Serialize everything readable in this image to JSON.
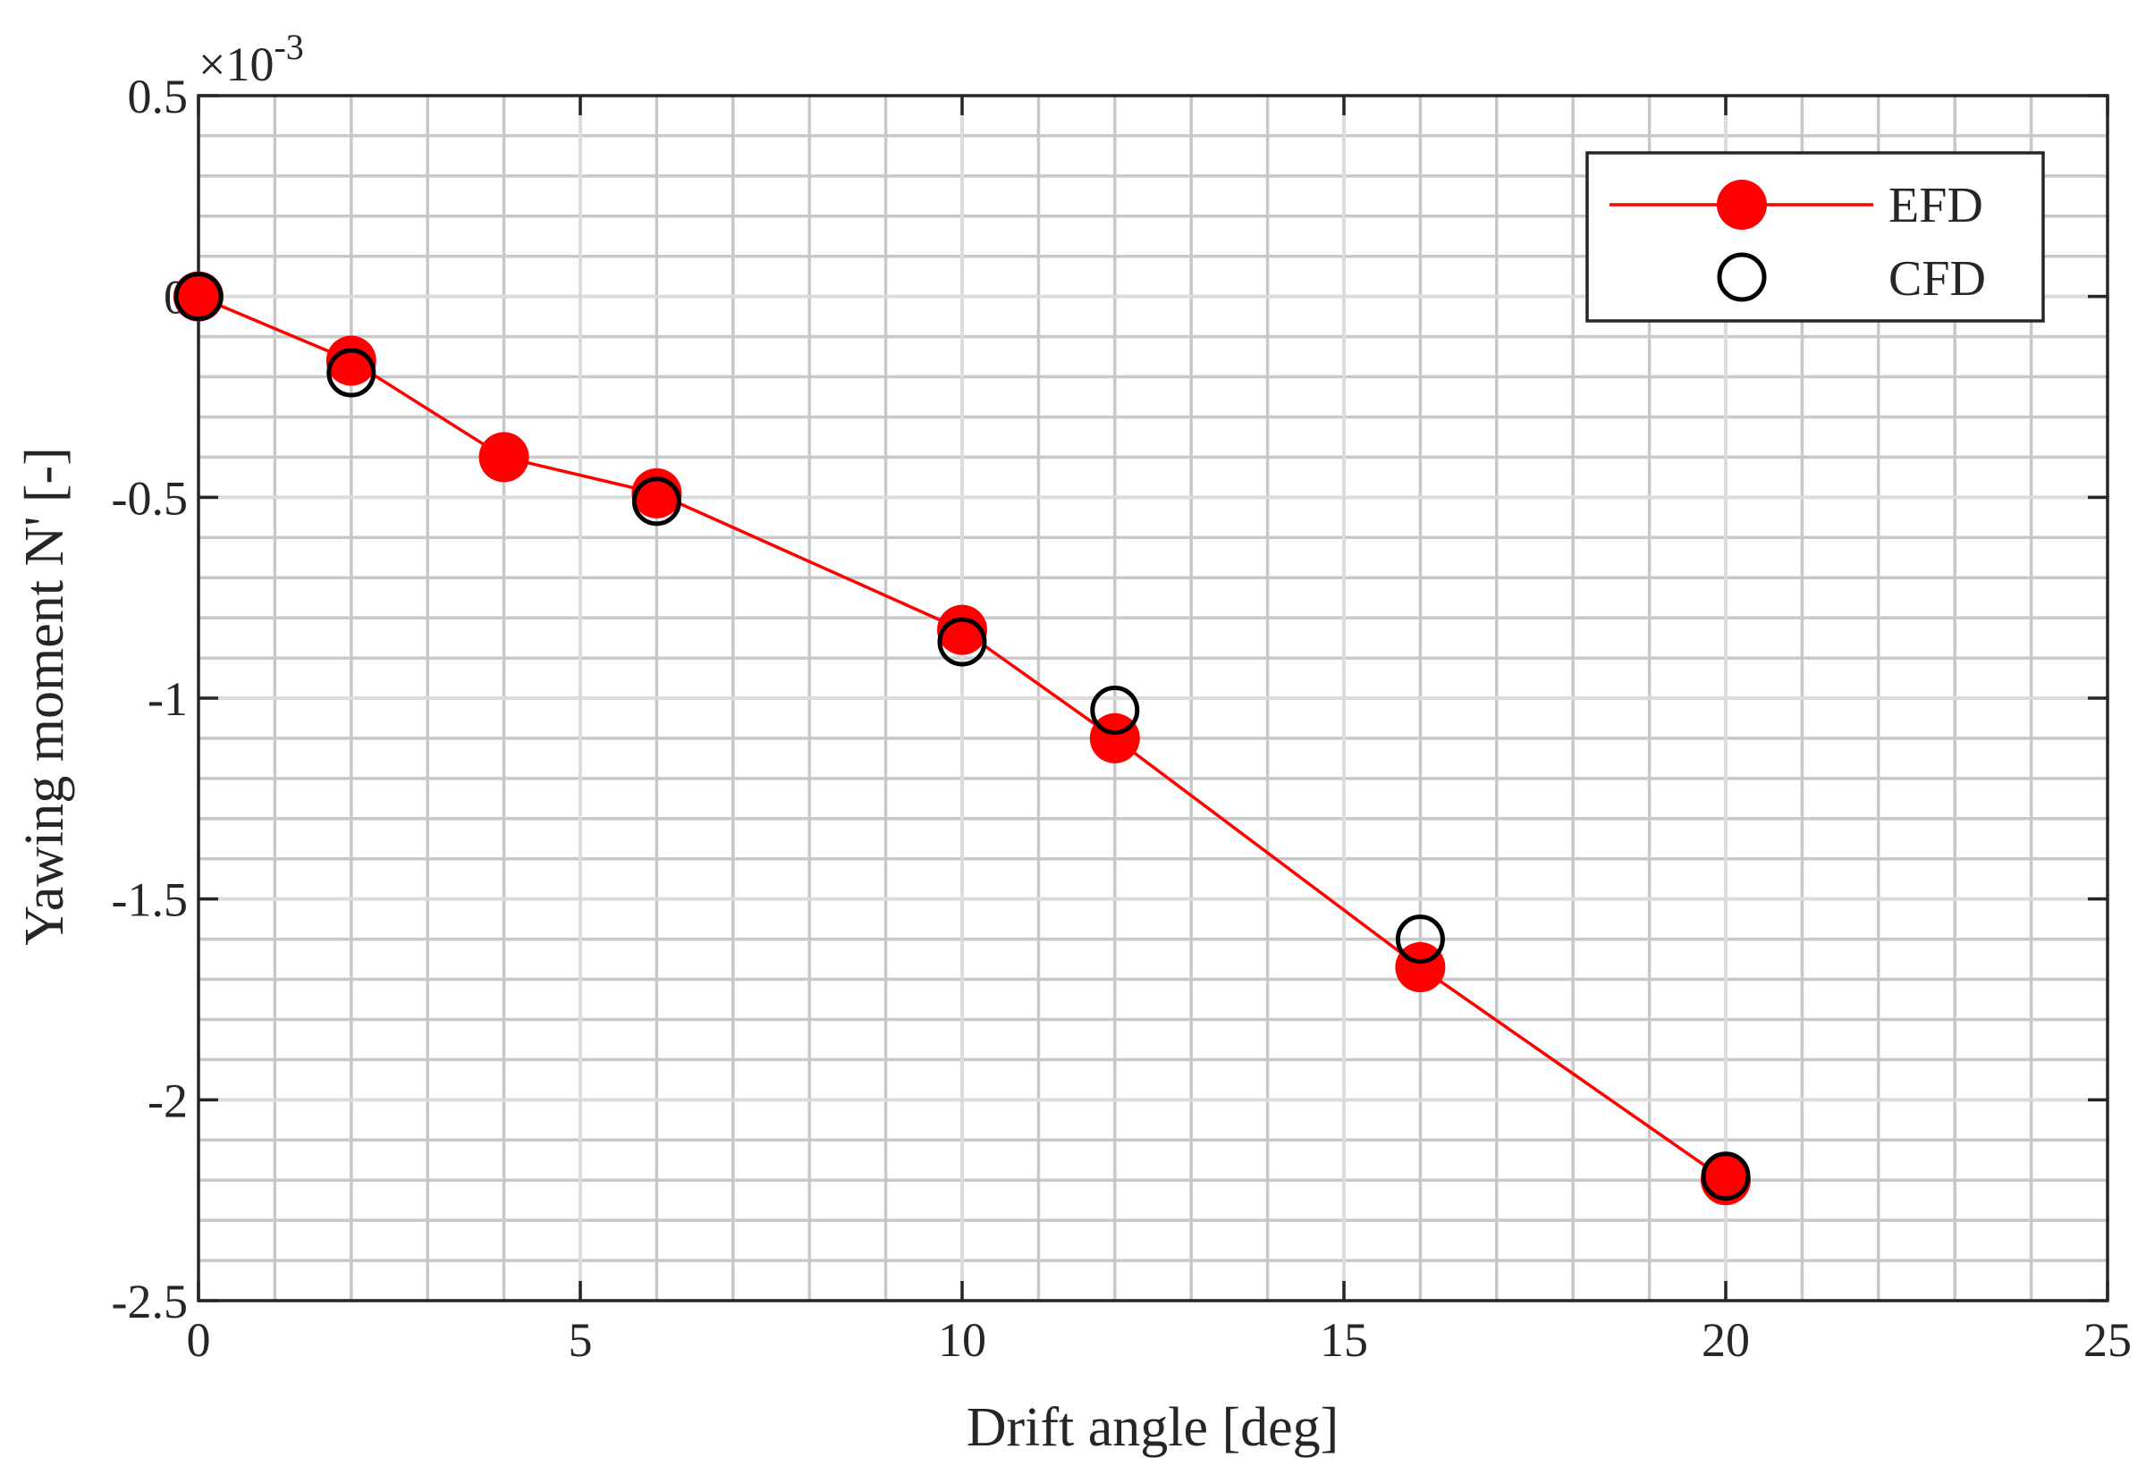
{
  "chart_data": {
    "type": "scatter",
    "title": "",
    "xlabel": "Drift angle [deg]",
    "ylabel": "Yawing moment N' [-]",
    "y_exponent_label": "×10",
    "y_exponent_power": "-3",
    "xlim": [
      0,
      25
    ],
    "ylim": [
      -2.5,
      0.5
    ],
    "xticks": [
      0,
      5,
      10,
      15,
      20,
      25
    ],
    "xtick_labels": [
      "0",
      "5",
      "10",
      "15",
      "20",
      "25"
    ],
    "yticks": [
      0.5,
      0,
      -0.5,
      -1,
      -1.5,
      -2,
      -2.5
    ],
    "ytick_labels": [
      "0.5",
      "0",
      "-0.5",
      "-1",
      "-1.5",
      "-2",
      "-2.5"
    ],
    "grid": true,
    "minor_grid": true,
    "legend_position": "top-right",
    "series": [
      {
        "name": "EFD",
        "style": "line-with-filled-markers",
        "color": "#ff0000",
        "x": [
          0,
          2,
          4,
          6,
          10,
          12,
          16,
          20
        ],
        "y": [
          0.0,
          -0.16,
          -0.4,
          -0.49,
          -0.83,
          -1.1,
          -1.67,
          -2.2
        ]
      },
      {
        "name": "CFD",
        "style": "open-markers",
        "color": "#000000",
        "x": [
          0,
          2,
          6,
          10,
          12,
          16,
          20
        ],
        "y": [
          0.0,
          -0.19,
          -0.51,
          -0.86,
          -1.03,
          -1.6,
          -2.19
        ]
      }
    ]
  }
}
